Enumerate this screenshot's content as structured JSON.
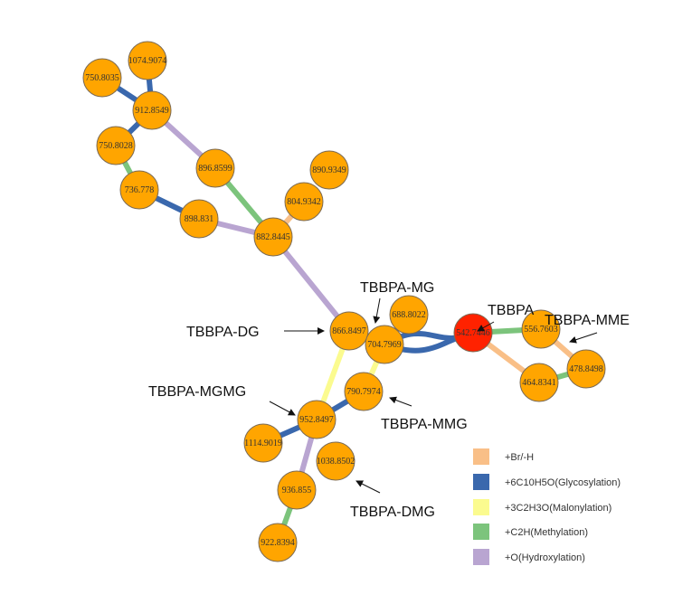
{
  "colors": {
    "br": "#f9bf87",
    "glycosylation": "#3a68ad",
    "malonylation": "#fbfb8f",
    "methylation": "#7cc47c",
    "hydroxylation": "#b9a5d1",
    "node": "#ffa500",
    "node_stroke": "#7a6a55",
    "root": "#ff2200"
  },
  "nodes": [
    {
      "id": "n1074",
      "label": "1074.9074"
    },
    {
      "id": "n750a",
      "label": "750.8035"
    },
    {
      "id": "n912",
      "label": "912.8549"
    },
    {
      "id": "n750b",
      "label": "750.8028"
    },
    {
      "id": "n896",
      "label": "896.8599"
    },
    {
      "id": "n890",
      "label": "890.9349"
    },
    {
      "id": "n736",
      "label": "736.778"
    },
    {
      "id": "n804",
      "label": "804.9342"
    },
    {
      "id": "n898",
      "label": "898.831"
    },
    {
      "id": "n882",
      "label": "882.8445"
    },
    {
      "id": "n688",
      "label": "688.8022"
    },
    {
      "id": "n866",
      "label": "866.8497"
    },
    {
      "id": "n704",
      "label": "704.7969"
    },
    {
      "id": "n542",
      "label": "542.7446"
    },
    {
      "id": "n556",
      "label": "556.7603"
    },
    {
      "id": "n478",
      "label": "478.8498"
    },
    {
      "id": "n464",
      "label": "464.8341"
    },
    {
      "id": "n790",
      "label": "790.7974"
    },
    {
      "id": "n952",
      "label": "952.8497"
    },
    {
      "id": "n1114",
      "label": "1114.9019"
    },
    {
      "id": "n1038",
      "label": "1038.8502"
    },
    {
      "id": "n936",
      "label": "936.855"
    },
    {
      "id": "n922",
      "label": "922.8394"
    }
  ],
  "edges": [
    {
      "from": "n1074",
      "to": "n912",
      "type": "glycosylation"
    },
    {
      "from": "n750a",
      "to": "n912",
      "type": "glycosylation"
    },
    {
      "from": "n750b",
      "to": "n912",
      "type": "glycosylation"
    },
    {
      "from": "n912",
      "to": "n896",
      "type": "hydroxylation"
    },
    {
      "from": "n750b",
      "to": "n736",
      "type": "methylation"
    },
    {
      "from": "n736",
      "to": "n898",
      "type": "glycosylation"
    },
    {
      "from": "n896",
      "to": "n882",
      "type": "methylation"
    },
    {
      "from": "n898",
      "to": "n882",
      "type": "hydroxylation"
    },
    {
      "from": "n804",
      "to": "n882",
      "type": "br"
    },
    {
      "from": "n882",
      "to": "n866",
      "type": "hydroxylation"
    },
    {
      "from": "n866",
      "to": "n704",
      "type": "glycosylation"
    },
    {
      "from": "n866",
      "to": "n952",
      "type": "malonylation"
    },
    {
      "from": "n704",
      "to": "n688",
      "type": "hydroxylation"
    },
    {
      "from": "n704",
      "to": "n542",
      "type": "glycosylation"
    },
    {
      "from": "n704",
      "to": "n790",
      "type": "malonylation"
    },
    {
      "from": "n542",
      "to": "n556",
      "type": "methylation"
    },
    {
      "from": "n542",
      "to": "n464",
      "type": "br"
    },
    {
      "from": "n556",
      "to": "n478",
      "type": "br"
    },
    {
      "from": "n464",
      "to": "n478",
      "type": "methylation"
    },
    {
      "from": "n790",
      "to": "n952",
      "type": "glycosylation"
    },
    {
      "from": "n952",
      "to": "n1114",
      "type": "glycosylation"
    },
    {
      "from": "n952",
      "to": "n936",
      "type": "hydroxylation"
    },
    {
      "from": "n936",
      "to": "n922",
      "type": "methylation"
    }
  ],
  "callouts": [
    {
      "id": "dg",
      "label": "TBBPA-DG",
      "target": "n866"
    },
    {
      "id": "mg",
      "label": "TBBPA-MG",
      "target": "n704"
    },
    {
      "id": "parent",
      "label": "TBBPA",
      "target": "n542"
    },
    {
      "id": "mme",
      "label": "TBBPA-MME",
      "target": "n556"
    },
    {
      "id": "mgmg",
      "label": "TBBPA-MGMG",
      "target": "n952"
    },
    {
      "id": "mmg",
      "label": "TBBPA-MMG",
      "target": "n790"
    },
    {
      "id": "dmg",
      "label": "TBBPA-DMG",
      "target": "n1038"
    }
  ],
  "legend": [
    {
      "type": "br",
      "label": "+Br/-H"
    },
    {
      "type": "glycosylation",
      "label": "+6C10H5O(Glycosylation)"
    },
    {
      "type": "malonylation",
      "label": "+3C2H3O(Malonylation)"
    },
    {
      "type": "methylation",
      "label": "+C2H(Methylation)"
    },
    {
      "type": "hydroxylation",
      "label": "+O(Hydroxylation)"
    }
  ]
}
